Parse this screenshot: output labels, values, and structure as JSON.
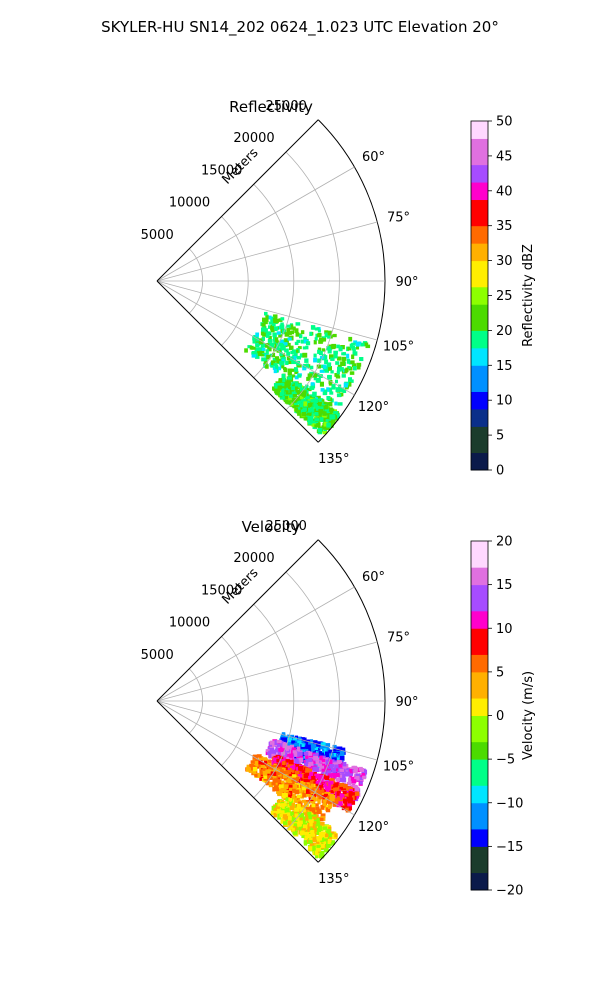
{
  "suptitle": "SKYLER-HU  SN14_202  0624_1.023 UTC Elevation 20°",
  "colors": {
    "grid": "#b0b0b0",
    "spine": "#000000",
    "reflectivity_cmap": [
      "#0b1a4a",
      "#1b3c2c",
      "#0a2f8a",
      "#0000ff",
      "#0090ff",
      "#00e5ff",
      "#00ff88",
      "#4cdb00",
      "#8dff00",
      "#ffee00",
      "#ffb000",
      "#ff6a00",
      "#ff0000",
      "#ff00cc",
      "#a64cff",
      "#e070e0",
      "#ffd8ff"
    ],
    "velocity_cmap": [
      "#0b1a4a",
      "#1b3c2c",
      "#0000ff",
      "#0090ff",
      "#00e5ff",
      "#00ff88",
      "#4cdb00",
      "#8dff00",
      "#ffee00",
      "#ffb000",
      "#ff6a00",
      "#ff0000",
      "#ff00cc",
      "#a64cff",
      "#e070e0",
      "#ffd8ff"
    ]
  },
  "chart_data": [
    {
      "type": "polar-sector",
      "title": "Reflectivity",
      "field": "reflectivity",
      "r_label": "Meters",
      "r_ticks": [
        "5000",
        "10000",
        "15000",
        "20000",
        "25000"
      ],
      "r_tick_values": [
        5000,
        10000,
        15000,
        20000,
        25000
      ],
      "rlim": [
        0,
        25000
      ],
      "theta_range_deg": [
        45,
        135
      ],
      "theta_ticks": [
        "60°",
        "75°",
        "90°",
        "105°",
        "120°",
        "135°"
      ],
      "theta_tick_values": [
        60,
        75,
        90,
        105,
        120,
        135
      ],
      "grid": true,
      "colorbar": {
        "label": "Reflectivity dBZ",
        "range": [
          0,
          50
        ],
        "ticks": [
          "0",
          "5",
          "10",
          "15",
          "20",
          "25",
          "30",
          "35",
          "40",
          "45",
          "50"
        ]
      },
      "echo_regions": [
        {
          "theta": [
            106,
            128
          ],
          "r": [
            12000,
            24000
          ],
          "value": 20
        },
        {
          "theta": [
            126,
            133
          ],
          "r": [
            17000,
            24500
          ],
          "value": 21
        }
      ]
    },
    {
      "type": "polar-sector",
      "title": "Velocity",
      "field": "velocity",
      "r_label": "Meters",
      "r_ticks": [
        "5000",
        "10000",
        "15000",
        "20000",
        "25000"
      ],
      "r_tick_values": [
        5000,
        10000,
        15000,
        20000,
        25000
      ],
      "rlim": [
        0,
        25000
      ],
      "theta_range_deg": [
        45,
        135
      ],
      "theta_ticks": [
        "60°",
        "75°",
        "90°",
        "105°",
        "120°",
        "135°"
      ],
      "theta_tick_values": [
        60,
        75,
        90,
        105,
        120,
        135
      ],
      "grid": true,
      "colorbar": {
        "label": "Velocity (m/s)",
        "range": [
          -20,
          20
        ],
        "ticks": [
          "−20",
          "−15",
          "−10",
          "−5",
          "0",
          "5",
          "10",
          "15",
          "20"
        ]
      },
      "echo_regions": [
        {
          "theta": [
            104,
            112
          ],
          "r": [
            14000,
            21000
          ],
          "value": -12
        },
        {
          "theta": [
            108,
            116
          ],
          "r": [
            13000,
            24000
          ],
          "value": 14
        },
        {
          "theta": [
            114,
            120
          ],
          "r": [
            14000,
            24000
          ],
          "value": 9
        },
        {
          "theta": [
            118,
            127
          ],
          "r": [
            12000,
            22000
          ],
          "value": 5
        },
        {
          "theta": [
            126,
            134
          ],
          "r": [
            17000,
            24500
          ],
          "value": 1
        }
      ]
    }
  ]
}
